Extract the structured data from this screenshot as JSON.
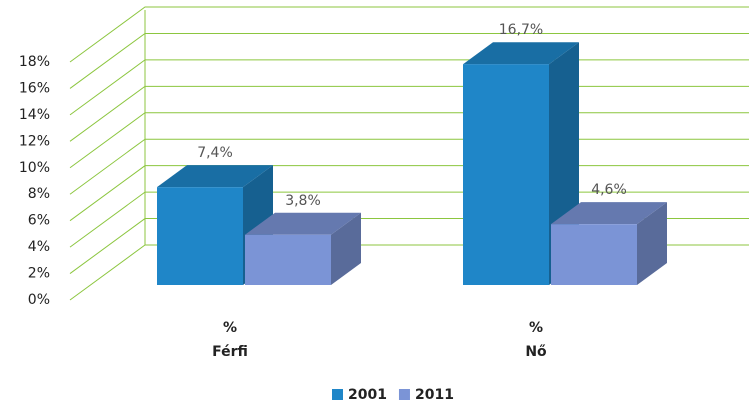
{
  "chart_data": {
    "type": "bar3d",
    "categories": [
      [
        "%",
        "Férfi"
      ],
      [
        "%",
        "Nő"
      ]
    ],
    "series": [
      {
        "name": "2001",
        "color": "#1f86c8",
        "values": [
          7.4,
          16.7
        ],
        "value_labels": [
          "7,4%",
          "16,7%"
        ]
      },
      {
        "name": "2011",
        "color": "#7b94d6",
        "values": [
          3.8,
          4.6
        ],
        "value_labels": [
          "3,8%",
          "4,6%"
        ]
      }
    ],
    "ylim": [
      0,
      18
    ],
    "yticks": [
      {
        "value": 0,
        "label": "0%"
      },
      {
        "value": 2,
        "label": "2%"
      },
      {
        "value": 4,
        "label": "4%"
      },
      {
        "value": 6,
        "label": "6%"
      },
      {
        "value": 8,
        "label": "8%"
      },
      {
        "value": 10,
        "label": "10%"
      },
      {
        "value": 12,
        "label": "12%"
      },
      {
        "value": 14,
        "label": "14%"
      },
      {
        "value": 16,
        "label": "16%"
      },
      {
        "value": 18,
        "label": "18%"
      }
    ],
    "grid": true,
    "legend": "bottom"
  }
}
